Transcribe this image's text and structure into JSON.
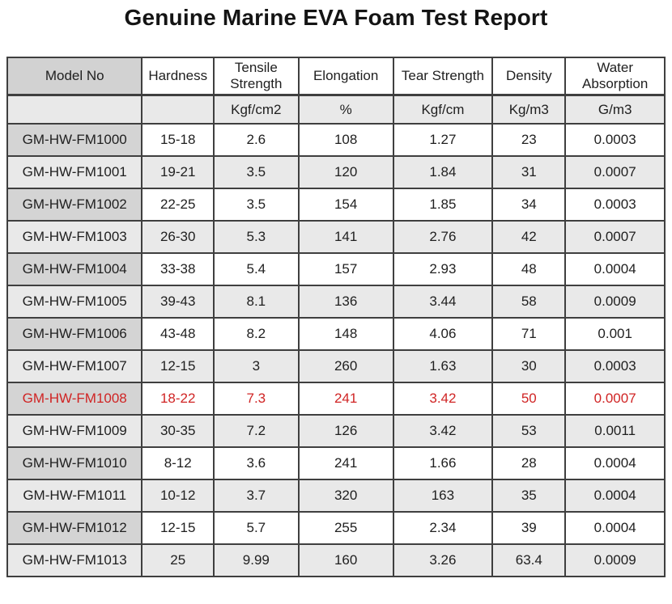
{
  "title": "Genuine Marine EVA Foam Test Report",
  "table": {
    "columns": [
      "Model No",
      "Hardness",
      "Tensile Strength",
      "Elongation",
      "Tear Strength",
      "Density",
      "Water Absorption"
    ],
    "units": [
      "",
      "",
      "Kgf/cm2",
      "%",
      "Kgf/cm",
      "Kg/m3",
      "G/m3"
    ],
    "rows": [
      {
        "cells": [
          "GM-HW-FM1000",
          "15-18",
          "2.6",
          "108",
          "1.27",
          "23",
          "0.0003"
        ],
        "highlight": false
      },
      {
        "cells": [
          "GM-HW-FM1001",
          "19-21",
          "3.5",
          "120",
          "1.84",
          "31",
          "0.0007"
        ],
        "highlight": false
      },
      {
        "cells": [
          "GM-HW-FM1002",
          "22-25",
          "3.5",
          "154",
          "1.85",
          "34",
          "0.0003"
        ],
        "highlight": false
      },
      {
        "cells": [
          "GM-HW-FM1003",
          "26-30",
          "5.3",
          "141",
          "2.76",
          "42",
          "0.0007"
        ],
        "highlight": false
      },
      {
        "cells": [
          "GM-HW-FM1004",
          "33-38",
          "5.4",
          "157",
          "2.93",
          "48",
          "0.0004"
        ],
        "highlight": false
      },
      {
        "cells": [
          "GM-HW-FM1005",
          "39-43",
          "8.1",
          "136",
          "3.44",
          "58",
          "0.0009"
        ],
        "highlight": false
      },
      {
        "cells": [
          "GM-HW-FM1006",
          "43-48",
          "8.2",
          "148",
          "4.06",
          "71",
          "0.001"
        ],
        "highlight": false
      },
      {
        "cells": [
          "GM-HW-FM1007",
          "12-15",
          "3",
          "260",
          "1.63",
          "30",
          "0.0003"
        ],
        "highlight": false
      },
      {
        "cells": [
          "GM-HW-FM1008",
          "18-22",
          "7.3",
          "241",
          "3.42",
          "50",
          "0.0007"
        ],
        "highlight": true
      },
      {
        "cells": [
          "GM-HW-FM1009",
          "30-35",
          "7.2",
          "126",
          "3.42",
          "53",
          "0.0011"
        ],
        "highlight": false
      },
      {
        "cells": [
          "GM-HW-FM1010",
          "8-12",
          "3.6",
          "241",
          "1.66",
          "28",
          "0.0004"
        ],
        "highlight": false
      },
      {
        "cells": [
          "GM-HW-FM1011",
          "10-12",
          "3.7",
          "320",
          "163",
          "35",
          "0.0004"
        ],
        "highlight": false
      },
      {
        "cells": [
          "GM-HW-FM1012",
          "12-15",
          "5.7",
          "255",
          "2.34",
          "39",
          "0.0004"
        ],
        "highlight": false
      },
      {
        "cells": [
          "GM-HW-FM1013",
          "25",
          "9.99",
          "160",
          "3.26",
          "63.4",
          "0.0009"
        ],
        "highlight": false
      }
    ],
    "colors": {
      "highlight_text": "#d02424",
      "header_first_cell_bg": "#d2d2d2",
      "shaded_row_bg": "#e9e9e9",
      "model_cell_bg": "#d4d4d4",
      "border": "#3f3f3f"
    }
  }
}
